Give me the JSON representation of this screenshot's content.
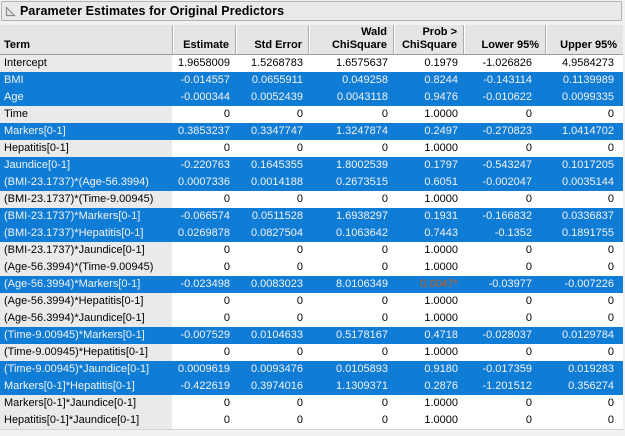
{
  "title": "Parameter Estimates for Original Predictors",
  "colors": {
    "selection_blue": "#0f7cd6",
    "significant_value_orange": "#c75e1a",
    "term_column_bg": "#eaeaea",
    "header_bg": "#e4e4e4",
    "title_bar_bg": "#eaeaea"
  },
  "table": {
    "columns": [
      {
        "label": "Term",
        "align": "left"
      },
      {
        "label": "Estimate",
        "align": "right"
      },
      {
        "label": "Std Error",
        "align": "right"
      },
      {
        "label": "Wald\nChiSquare",
        "align": "right"
      },
      {
        "label": "Prob >\nChiSquare",
        "align": "right"
      },
      {
        "label": "Lower 95%",
        "align": "right"
      },
      {
        "label": "Upper 95%",
        "align": "right"
      }
    ],
    "rows": [
      {
        "term": "Intercept",
        "selected": false,
        "values": [
          "1.9658009",
          "1.5268783",
          "1.6575637",
          "0.1979",
          "-1.026826",
          "4.9584273"
        ]
      },
      {
        "term": "BMI",
        "selected": true,
        "values": [
          "-0.014557",
          "0.0655911",
          "0.049258",
          "0.8244",
          "-0.143114",
          "0.1139989"
        ]
      },
      {
        "term": "Age",
        "selected": true,
        "values": [
          "-0.000344",
          "0.0052439",
          "0.0043118",
          "0.9476",
          "-0.010622",
          "0.0099335"
        ]
      },
      {
        "term": "Time",
        "selected": false,
        "values": [
          "0",
          "0",
          "0",
          "1.0000",
          "0",
          "0"
        ]
      },
      {
        "term": "Markers[0-1]",
        "selected": true,
        "values": [
          "0.3853237",
          "0.3347747",
          "1.3247874",
          "0.2497",
          "-0.270823",
          "1.0414702"
        ]
      },
      {
        "term": "Hepatitis[0-1]",
        "selected": false,
        "values": [
          "0",
          "0",
          "0",
          "1.0000",
          "0",
          "0"
        ]
      },
      {
        "term": "Jaundice[0-1]",
        "selected": true,
        "values": [
          "-0.220763",
          "0.1645355",
          "1.8002539",
          "0.1797",
          "-0.543247",
          "0.1017205"
        ]
      },
      {
        "term": "(BMI-23.1737)*(Age-56.3994)",
        "selected": true,
        "values": [
          "0.0007336",
          "0.0014188",
          "0.2673515",
          "0.6051",
          "-0.002047",
          "0.0035144"
        ]
      },
      {
        "term": "(BMI-23.1737)*(Time-9.00945)",
        "selected": false,
        "values": [
          "0",
          "0",
          "0",
          "1.0000",
          "0",
          "0"
        ]
      },
      {
        "term": "(BMI-23.1737)*Markers[0-1]",
        "selected": true,
        "values": [
          "-0.066574",
          "0.0511528",
          "1.6938297",
          "0.1931",
          "-0.166832",
          "0.0336837"
        ]
      },
      {
        "term": "(BMI-23.1737)*Hepatitis[0-1]",
        "selected": true,
        "values": [
          "0.0269878",
          "0.0827504",
          "0.1063642",
          "0.7443",
          "-0.1352",
          "0.1891755"
        ]
      },
      {
        "term": "(BMI-23.1737)*Jaundice[0-1]",
        "selected": false,
        "values": [
          "0",
          "0",
          "0",
          "1.0000",
          "0",
          "0"
        ]
      },
      {
        "term": "(Age-56.3994)*(Time-9.00945)",
        "selected": false,
        "values": [
          "0",
          "0",
          "0",
          "1.0000",
          "0",
          "0"
        ]
      },
      {
        "term": "(Age-56.3994)*Markers[0-1]",
        "selected": true,
        "sig_col": 3,
        "values": [
          "-0.023498",
          "0.0083023",
          "8.0106349",
          "0.0047*",
          "-0.03977",
          "-0.007226"
        ]
      },
      {
        "term": "(Age-56.3994)*Hepatitis[0-1]",
        "selected": false,
        "values": [
          "0",
          "0",
          "0",
          "1.0000",
          "0",
          "0"
        ]
      },
      {
        "term": "(Age-56.3994)*Jaundice[0-1]",
        "selected": false,
        "values": [
          "0",
          "0",
          "0",
          "1.0000",
          "0",
          "0"
        ]
      },
      {
        "term": "(Time-9.00945)*Markers[0-1]",
        "selected": true,
        "values": [
          "-0.007529",
          "0.0104633",
          "0.5178167",
          "0.4718",
          "-0.028037",
          "0.0129784"
        ]
      },
      {
        "term": "(Time-9.00945)*Hepatitis[0-1]",
        "selected": false,
        "values": [
          "0",
          "0",
          "0",
          "1.0000",
          "0",
          "0"
        ]
      },
      {
        "term": "(Time-9.00945)*Jaundice[0-1]",
        "selected": true,
        "values": [
          "0.0009619",
          "0.0093476",
          "0.0105893",
          "0.9180",
          "-0.017359",
          "0.019283"
        ]
      },
      {
        "term": "Markers[0-1]*Hepatitis[0-1]",
        "selected": true,
        "values": [
          "-0.422619",
          "0.3974016",
          "1.1309371",
          "0.2876",
          "-1.201512",
          "0.356274"
        ]
      },
      {
        "term": "Markers[0-1]*Jaundice[0-1]",
        "selected": false,
        "values": [
          "0",
          "0",
          "0",
          "1.0000",
          "0",
          "0"
        ]
      },
      {
        "term": "Hepatitis[0-1]*Jaundice[0-1]",
        "selected": false,
        "values": [
          "0",
          "0",
          "0",
          "1.0000",
          "0",
          "0"
        ]
      }
    ]
  }
}
